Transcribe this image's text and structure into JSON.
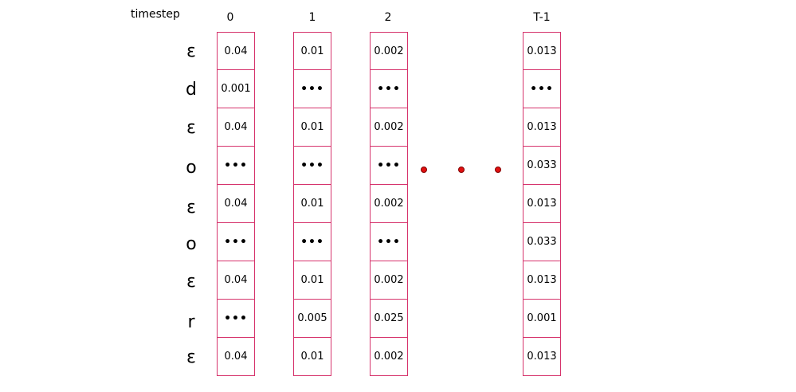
{
  "timestep_label": "timestep",
  "row_labels": [
    "ε",
    "d",
    "ε",
    "o",
    "ε",
    "o",
    "ε",
    "r",
    "ε"
  ],
  "columns": [
    {
      "header": "0",
      "cells": [
        "0.04",
        "0.001",
        "0.04",
        "•••",
        "0.04",
        "•••",
        "0.04",
        "•••",
        "0.04"
      ]
    },
    {
      "header": "1",
      "cells": [
        "0.01",
        "•••",
        "0.01",
        "•••",
        "0.01",
        "•••",
        "0.01",
        "0.005",
        "0.01"
      ]
    },
    {
      "header": "2",
      "cells": [
        "0.002",
        "•••",
        "0.002",
        "•••",
        "0.002",
        "•••",
        "0.002",
        "0.025",
        "0.002"
      ]
    },
    {
      "header": "T-1",
      "cells": [
        "0.013",
        "•••",
        "0.013",
        "0.033",
        "0.013",
        "0.033",
        "0.013",
        "0.001",
        "0.013"
      ]
    }
  ],
  "ellipsis_dots": 3,
  "colors": {
    "cell_border": "#d6336c",
    "ellipsis_dot": "#e01010"
  }
}
